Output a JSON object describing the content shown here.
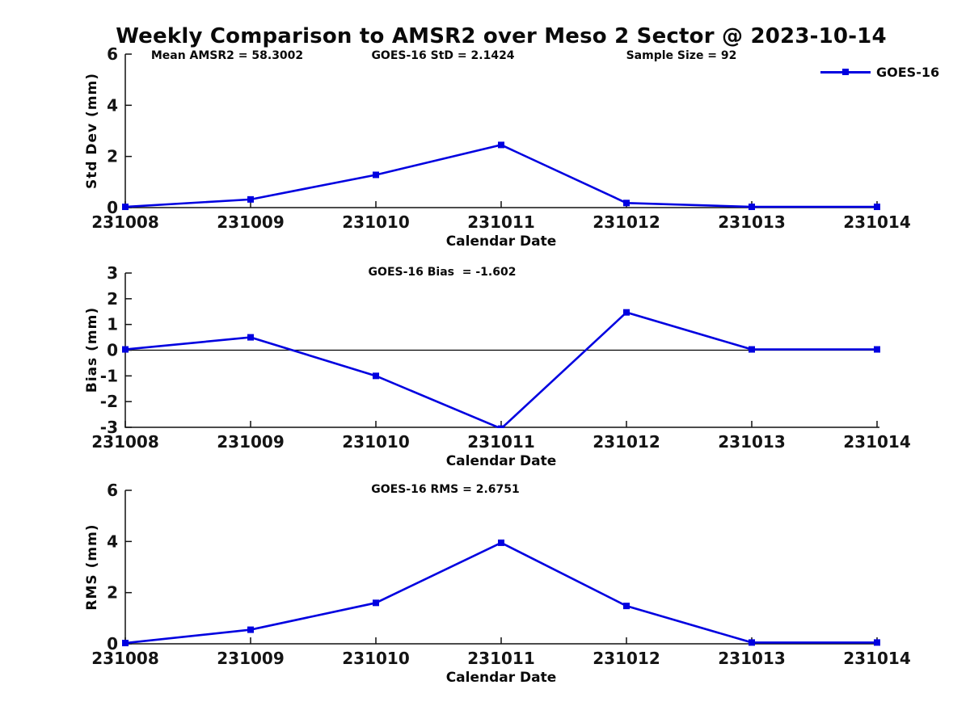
{
  "title": "Weekly Comparison to AMSR2 over Meso 2 Sector @ 2023-10-14",
  "annotations": {
    "mean_amsr2": "Mean AMSR2 = 58.3002",
    "goes16_std": "GOES-16 StD = 2.1424",
    "sample_size": "Sample Size = 92",
    "goes16_bias": "GOES-16 Bias  = -1.602",
    "goes16_rms": "GOES-16 RMS = 2.6751"
  },
  "legend": {
    "label": "GOES-16",
    "color": "#0000E0"
  },
  "colors": {
    "line": "#0000E0",
    "axis": "#111111",
    "text": "#0a0a0a"
  },
  "chart_data": [
    {
      "type": "line",
      "name": "std-dev-panel",
      "categories": [
        "231008",
        "231009",
        "231010",
        "231011",
        "231012",
        "231013",
        "231014"
      ],
      "series": [
        {
          "name": "GOES-16",
          "values": [
            0.03,
            0.32,
            1.28,
            2.45,
            0.18,
            0.03,
            0.03
          ]
        }
      ],
      "xlabel": "Calendar Date",
      "ylabel": "Std Dev (mm)",
      "ylim": [
        0,
        6
      ],
      "yticks": [
        0,
        2,
        4,
        6
      ],
      "grid": false,
      "zero_line": false,
      "marker": "square",
      "legend_position": "outside-top-right"
    },
    {
      "type": "line",
      "name": "bias-panel",
      "categories": [
        "231008",
        "231009",
        "231010",
        "231011",
        "231012",
        "231013",
        "231014"
      ],
      "series": [
        {
          "name": "GOES-16",
          "values": [
            0.03,
            0.5,
            -1.0,
            -3.05,
            1.47,
            0.03,
            0.03
          ]
        }
      ],
      "xlabel": "Calendar Date",
      "ylabel": "Bias (mm)",
      "ylim": [
        -3,
        3
      ],
      "yticks": [
        -3,
        -2,
        -1,
        0,
        1,
        2,
        3
      ],
      "grid": false,
      "zero_line": true,
      "marker": "square",
      "clip_to_axes": true
    },
    {
      "type": "line",
      "name": "rms-panel",
      "categories": [
        "231008",
        "231009",
        "231010",
        "231011",
        "231012",
        "231013",
        "231014"
      ],
      "series": [
        {
          "name": "GOES-16",
          "values": [
            0.03,
            0.55,
            1.6,
            3.95,
            1.48,
            0.05,
            0.05
          ]
        }
      ],
      "xlabel": "Calendar Date",
      "ylabel": "RMS (mm)",
      "ylim": [
        0,
        6
      ],
      "yticks": [
        0,
        2,
        4,
        6
      ],
      "grid": false,
      "zero_line": false,
      "marker": "square"
    }
  ]
}
